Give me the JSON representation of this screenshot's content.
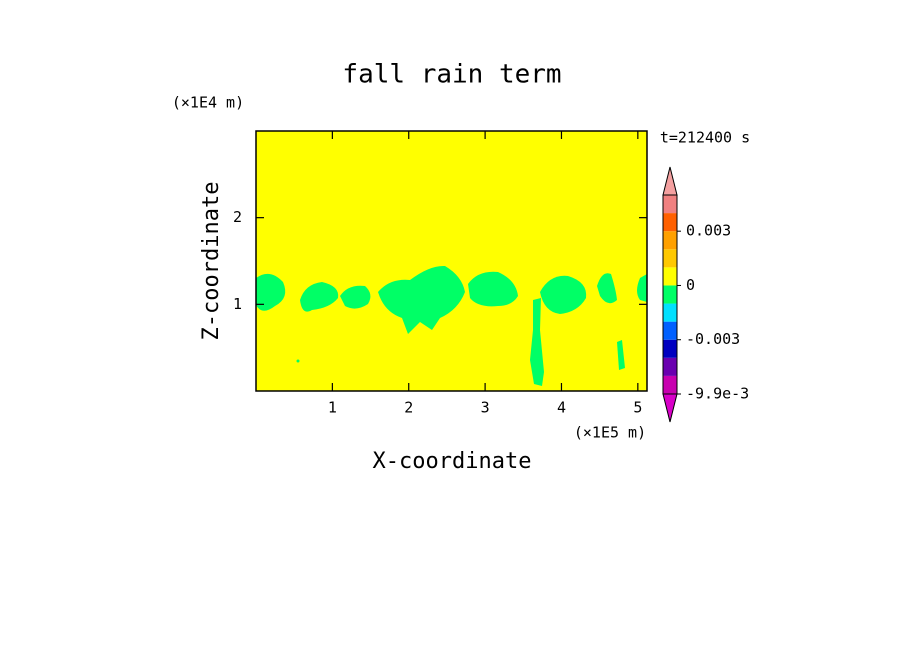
{
  "chart_data": {
    "type": "contour",
    "title": "fall rain term",
    "xlabel": "X-coordinate",
    "ylabel": "Z-coordinate",
    "x_unit": "(×1E5 m)",
    "y_unit": "(×1E4 m)",
    "time_label": "t=212400 s",
    "xlim": [
      0,
      5.12
    ],
    "ylim": [
      0,
      3
    ],
    "xticks": [
      1,
      2,
      3,
      4,
      5
    ],
    "yticks": [
      1,
      2
    ],
    "colorbar": {
      "levels": [
        -0.0099,
        -0.006,
        -0.004,
        -0.003,
        -0.002,
        -0.001,
        0,
        0.001,
        0.002,
        0.003,
        0.004,
        0.006
      ],
      "colors": [
        "#d800c8",
        "#c800b0",
        "#6a00b0",
        "#0000c0",
        "#0060ff",
        "#00e0ff",
        "#00ff66",
        "#ffff00",
        "#ffc800",
        "#ffa000",
        "#ff6000",
        "#f08080",
        "#f4a0a0"
      ],
      "ticks": [
        {
          "value": -0.0099,
          "label": "-9.9e-3"
        },
        -0.003,
        0,
        0.003
      ]
    }
  }
}
